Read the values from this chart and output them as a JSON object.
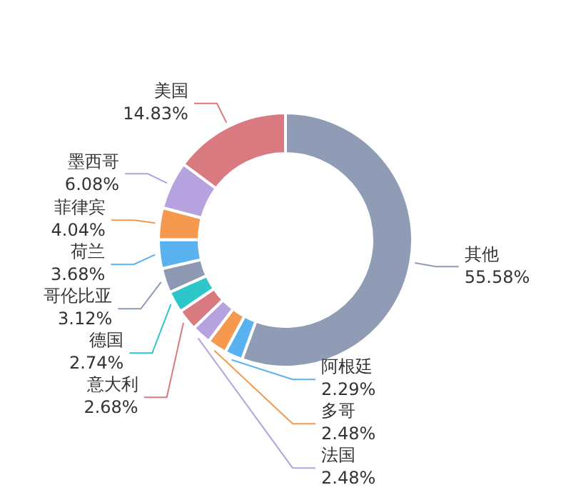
{
  "chart_data": {
    "type": "donut",
    "categories": [
      "其他",
      "阿根廷",
      "多哥",
      "法国",
      "意大利",
      "德国",
      "哥伦比亚",
      "荷兰",
      "菲律宾",
      "墨西哥",
      "美国"
    ],
    "values": [
      55.58,
      2.29,
      2.48,
      2.48,
      2.68,
      2.74,
      3.12,
      3.68,
      4.04,
      6.08,
      14.83
    ],
    "value_labels": [
      "55.58%",
      "2.29%",
      "2.48%",
      "2.48%",
      "2.68%",
      "2.74%",
      "3.12%",
      "3.68%",
      "4.04%",
      "6.08%",
      "14.83%"
    ],
    "colors": [
      "#909cb5",
      "#5ab1ef",
      "#f5994e",
      "#b6a2de",
      "#d87a80",
      "#2ec7c9",
      "#8d98b3",
      "#5ab1ef",
      "#f5994e",
      "#b6a2de",
      "#d87a80"
    ],
    "legend": false
  }
}
